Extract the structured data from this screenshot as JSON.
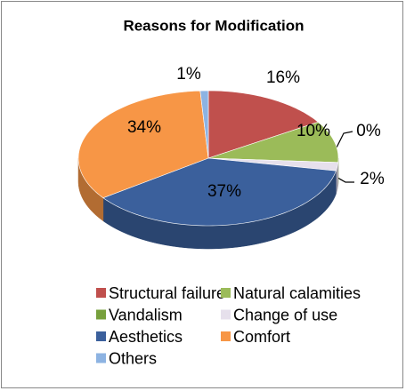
{
  "chart_data": {
    "type": "pie",
    "title": "Reasons for Modification",
    "categories": [
      "Structural failure",
      "Natural calamities",
      "Vandalism",
      "Change of use",
      "Aesthetics",
      "Comfort",
      "Others"
    ],
    "values": [
      16,
      10,
      0,
      2,
      37,
      34,
      1
    ],
    "value_labels": [
      "16%",
      "10%",
      "0%",
      "2%",
      "37%",
      "34%",
      "1%"
    ],
    "colors": [
      "#c0504d",
      "#9bbb59",
      "#77a03c",
      "#e6e0ec",
      "#3b609c",
      "#f79646",
      "#8db3e2"
    ],
    "legend": "bottom"
  }
}
